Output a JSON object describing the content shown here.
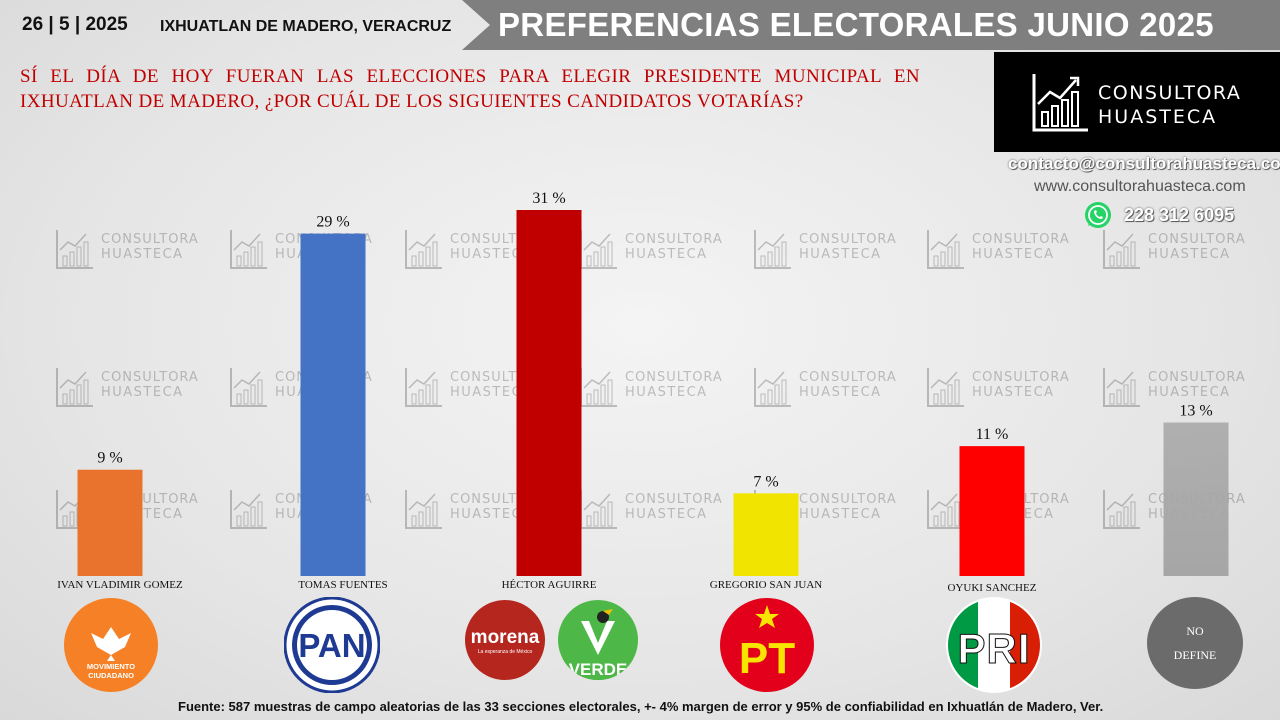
{
  "header": {
    "date": "26 | 5 | 2025",
    "location": "IXHUATLAN DE MADERO, VERACRUZ",
    "title": "PREFERENCIAS ELECTORALES JUNIO 2025"
  },
  "question": "SÍ EL DÍA DE HOY FUERAN LAS ELECCIONES PARA ELEGIR PRESIDENTE MUNICIPAL EN IXHUATLAN DE MADERO, ¿POR CUÁL DE LOS SIGUIENTES CANDIDATOS VOTARÍAS?",
  "brand": {
    "line1": "CONSULTORA",
    "line2": "HUASTECA",
    "email": "contacto@consultorahuasteca.com",
    "website": "www.consultorahuasteca.com",
    "phone": "228 312 6095"
  },
  "chart_data": {
    "type": "bar",
    "categories": [
      "IVAN VLADIMIR GOMEZ",
      "TOMAS FUENTES",
      "HÉCTOR AGUIRRE",
      "GREGORIO SAN JUAN",
      "OYUKI SANCHEZ",
      ""
    ],
    "values": [
      9,
      29,
      31,
      7,
      11,
      13
    ],
    "value_labels": [
      "9 %",
      "29 %",
      "31 %",
      "7 %",
      "11 %",
      "13 %"
    ],
    "colors": [
      "#e9732c",
      "#4472c4",
      "#c00000",
      "#f0e400",
      "#ff0000",
      "#a6a6a6"
    ],
    "ylim": [
      0,
      31
    ],
    "grid": false,
    "legend": "none"
  },
  "parties": {
    "mc_line1": "MOVIMIENTO",
    "mc_line2": "CIUDADANO",
    "pan": "PAN",
    "morena": "morena",
    "morena_sub": "La esperanza de México",
    "verde": "VERDE",
    "pt": "PT",
    "pri": "PRI",
    "nodefine_line1": "NO",
    "nodefine_line2": "DEFINE"
  },
  "footer": "Fuente:  587 muestras de campo aleatorias de las  33 secciones electorales, +- 4% margen de error y 95% de confiabilidad en Ixhuatlán de Madero, Ver.",
  "icons": [
    "chart-growth-icon",
    "whatsapp-icon"
  ]
}
